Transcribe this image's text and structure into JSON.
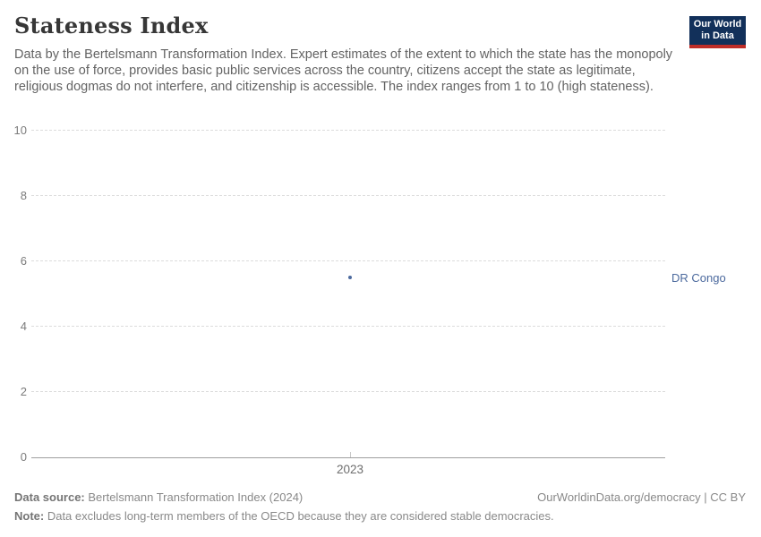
{
  "header": {
    "title": "Stateness Index",
    "subtitle": "Data by the Bertelsmann Transformation Index. Expert estimates of the extent to which the state has the monopoly on the use of force, provides basic public services across the country, citizens accept the state as legitimate, religious dogmas do not interfere, and citizenship is accessible. The index ranges from 1 to 10 (high stateness).",
    "logo": {
      "line1": "Our World",
      "line2": "in Data",
      "bg_color": "#12305a",
      "bar_color": "#be2d28"
    }
  },
  "chart_data": {
    "type": "scatter",
    "title": "Stateness Index",
    "xlabel": "",
    "ylabel": "",
    "ylim": [
      0,
      10
    ],
    "yticks": [
      0,
      2,
      4,
      6,
      8,
      10
    ],
    "xticks": [
      "2023"
    ],
    "grid": "horizontal-dashed",
    "legend_position": "right-of-plot",
    "series": [
      {
        "name": "DR Congo",
        "color": "#4c6a9e",
        "points": [
          {
            "x": 2023,
            "y": 5.5
          }
        ]
      }
    ]
  },
  "footer": {
    "datasource_label": "Data source:",
    "datasource_value": " Bertelsmann Transformation Index (2024)",
    "credit": "OurWorldinData.org/democracy | CC BY",
    "note_label": "Note:",
    "note_value": " Data excludes long-term members of the OECD because they are considered stable democracies."
  }
}
